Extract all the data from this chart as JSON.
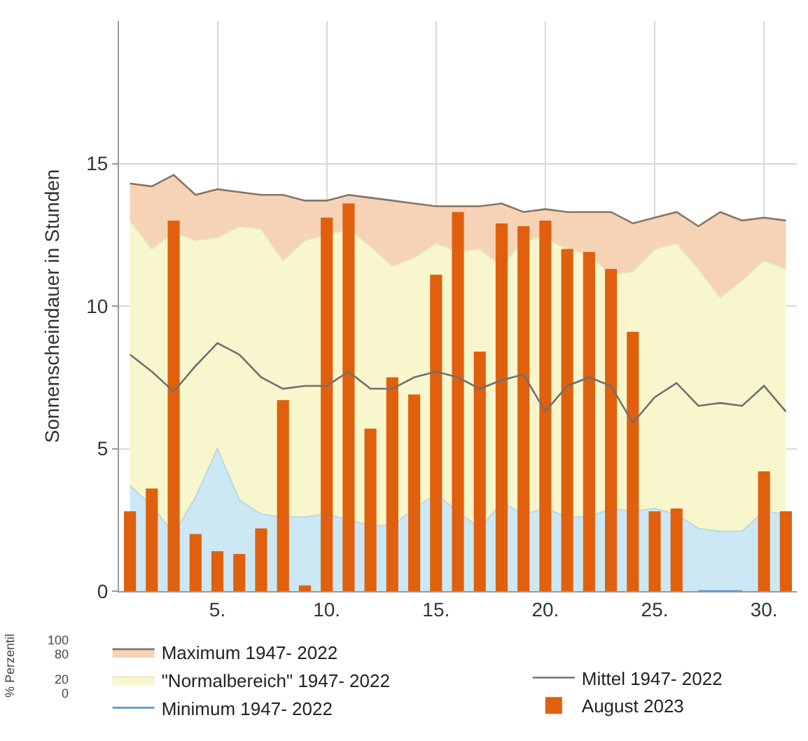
{
  "chart_data": {
    "type": "bar",
    "ylabel": "Sonnenscheindauer in Stunden",
    "x": [
      1,
      2,
      3,
      4,
      5,
      6,
      7,
      8,
      9,
      10,
      11,
      12,
      13,
      14,
      15,
      16,
      17,
      18,
      19,
      20,
      21,
      22,
      23,
      24,
      25,
      26,
      27,
      28,
      29,
      30,
      31
    ],
    "xlim": [
      0.5,
      31.5
    ],
    "xticks": [
      {
        "value": 5,
        "label": "5."
      },
      {
        "value": 10,
        "label": "10."
      },
      {
        "value": 15,
        "label": "15."
      },
      {
        "value": 20,
        "label": "20."
      },
      {
        "value": 25,
        "label": "25."
      },
      {
        "value": 30,
        "label": "30."
      }
    ],
    "ylim": [
      0,
      20
    ],
    "yticks": [
      0,
      5,
      10,
      15
    ],
    "grid": true,
    "legend": "bottom",
    "marker": "none",
    "line_style": "solid",
    "series": [
      {
        "type": "area",
        "color": "#cde8f5",
        "values": [
          3.7,
          3.0,
          2.0,
          3.3,
          5.0,
          3.2,
          2.7,
          2.6,
          2.6,
          2.7,
          2.5,
          2.3,
          2.3,
          2.9,
          3.4,
          2.8,
          2.2,
          3.1,
          2.7,
          2.9,
          2.6,
          2.6,
          2.9,
          2.8,
          2.9,
          2.7,
          2.2,
          2.1,
          2.1,
          2.8,
          2.7
        ]
      },
      {
        "type": "area",
        "name": "\"Normalbereich\" 1947- 2022",
        "color": "#f8f6cc",
        "values": [
          13.0,
          12.0,
          12.6,
          12.3,
          12.4,
          12.8,
          12.7,
          11.6,
          12.3,
          12.5,
          12.7,
          12.1,
          11.4,
          11.7,
          12.2,
          11.9,
          12.0,
          11.4,
          12.3,
          12.4,
          12.0,
          11.8,
          11.1,
          11.2,
          12.0,
          12.2,
          11.3,
          10.3,
          10.9,
          11.6,
          11.3
        ]
      },
      {
        "type": "area",
        "name": "Maximum 1947- 2022",
        "color": "#f6d3b6",
        "values": [
          14.3,
          14.2,
          14.6,
          13.9,
          14.1,
          14.0,
          13.9,
          13.9,
          13.7,
          13.7,
          13.9,
          13.8,
          13.7,
          13.6,
          13.5,
          13.5,
          13.5,
          13.6,
          13.3,
          13.4,
          13.3,
          13.3,
          13.3,
          12.9,
          13.1,
          13.3,
          12.8,
          13.3,
          13.0,
          13.1,
          13.0
        ]
      },
      {
        "type": "line",
        "name": "Minimum 1947- 2022",
        "color": "#4a90c8",
        "values": [
          null,
          null,
          null,
          null,
          null,
          null,
          null,
          null,
          null,
          null,
          null,
          null,
          null,
          null,
          null,
          null,
          null,
          null,
          null,
          null,
          null,
          null,
          null,
          null,
          null,
          null,
          0,
          0,
          0,
          null,
          null
        ]
      },
      {
        "type": "line",
        "name": "Mittel 1947- 2022",
        "color": "#707070",
        "values": [
          8.3,
          7.7,
          7.0,
          7.9,
          8.7,
          8.3,
          7.5,
          7.1,
          7.2,
          7.2,
          7.7,
          7.1,
          7.1,
          7.5,
          7.7,
          7.5,
          7.1,
          7.4,
          7.6,
          6.3,
          7.2,
          7.5,
          7.2,
          5.9,
          6.8,
          7.3,
          6.5,
          6.6,
          6.5,
          7.2,
          6.3
        ]
      },
      {
        "name": "August 2023",
        "color": "#e0600e",
        "values": [
          2.8,
          3.6,
          13.0,
          2.0,
          1.4,
          1.3,
          2.2,
          6.7,
          0.2,
          13.1,
          13.6,
          5.7,
          7.5,
          6.9,
          11.1,
          13.3,
          8.4,
          12.9,
          12.8,
          13.0,
          12.0,
          11.9,
          11.3,
          9.1,
          2.8,
          2.9,
          0,
          0,
          0,
          4.2,
          2.8
        ]
      }
    ],
    "annotations": [
      "% Perzentil",
      "100",
      "80",
      "20",
      "0"
    ]
  }
}
